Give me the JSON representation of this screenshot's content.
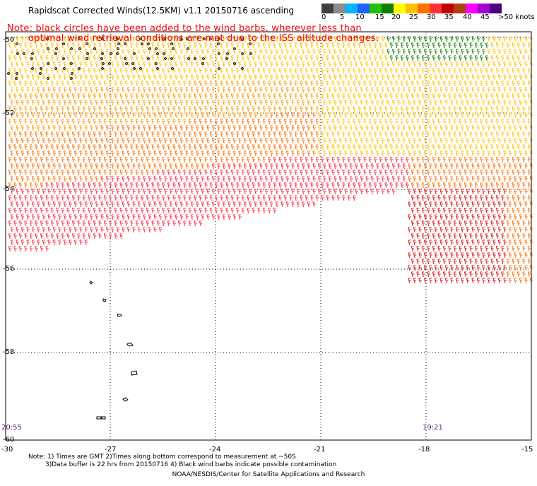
{
  "header": {
    "title": "Rapidscat Corrected Winds(12.5KM) v1.1 20150716 ascending",
    "note_line1": "Note: black circles have been added to the wind barbs, wherever less than",
    "note_line2": "optimal wind retrieval conditions are met due to the ISS altitude changes."
  },
  "legend": {
    "labels": [
      "0",
      "5",
      "10",
      "15",
      "20",
      "25",
      "30",
      "35",
      "40",
      "45",
      ">50 knots"
    ],
    "colors": [
      "#404040",
      "#8c8c8c",
      "#00b4ff",
      "#2060ff",
      "#20c000",
      "#108000",
      "#ffff00",
      "#ffc000",
      "#ff7000",
      "#ff3030",
      "#c00000",
      "#b04010",
      "#ff00ff",
      "#a000d0",
      "#500080"
    ]
  },
  "axes": {
    "lat_labels": [
      "-50",
      "-52",
      "-54",
      "-56",
      "-58",
      "-60"
    ],
    "lon_labels": [
      "-30",
      "-27",
      "-24",
      "-21",
      "-18",
      "-15"
    ]
  },
  "times": {
    "left": "20:55",
    "right": "19:21"
  },
  "footer": {
    "note1": "Note: 1) Times are GMT 2)Times along bottom correspond to measurement at ~50S",
    "note2": "3)Data buffer is 22 hrs from 20150716 4) Black wind barbs indicate possible contamination",
    "credit": "NOAA/NESDIS/Center for Satellite Applications and Research"
  }
}
